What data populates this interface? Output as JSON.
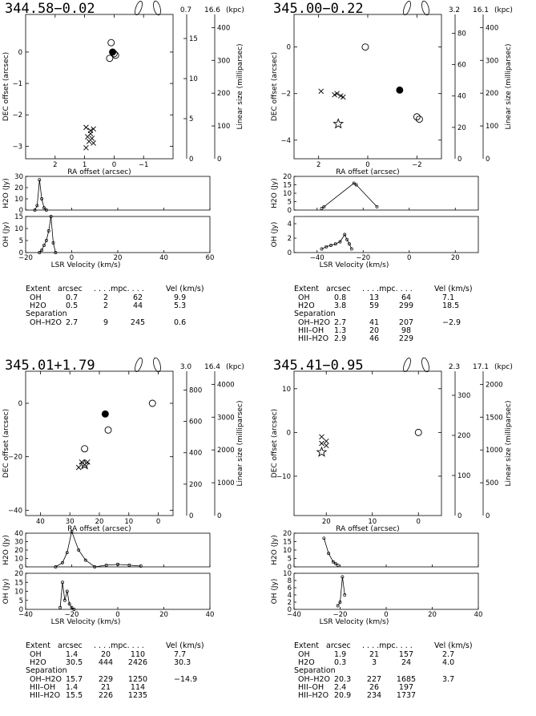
{
  "panels": [
    {
      "title": "344.58−0.02",
      "dist_near": "0.7",
      "dist_far": "16.6",
      "dist_unit": "(kpc)",
      "map_xlabel": "RA offset (arcsec)",
      "map_ylabel": "DEC offset (arcsec)",
      "lin_label": "Linear size (milliparsec)",
      "h2o_label": "H2O (Jy)",
      "oh_label": "OH (Jy)",
      "vel_label": "LSR Velocity (km/s)",
      "map_xticks": [
        "2",
        "1",
        "0",
        "−1"
      ],
      "map_yticks": [
        "0",
        "−1",
        "−2",
        "−3"
      ],
      "near_ticks": [
        "5",
        "10",
        "15"
      ],
      "far_ticks": [
        "100",
        "200",
        "300",
        "400"
      ],
      "h2o_yticks": [
        "0",
        "10",
        "20",
        "30"
      ],
      "oh_yticks": [
        "0",
        "5",
        "10",
        "15"
      ],
      "vel_ticks": [
        "−20",
        "0",
        "20",
        "40",
        "60"
      ],
      "table": {
        "header": [
          "Extent",
          "arcsec",
          ". . . .mpc. . . .",
          "Vel (km/s)"
        ],
        "rows": [
          [
            "OH",
            "0.7",
            "2",
            "62",
            "9.9"
          ],
          [
            "H2O",
            "0.5",
            "2",
            "44",
            "5.3"
          ]
        ],
        "sep_header": "Separation",
        "sep_rows": [
          [
            "OH–H2O",
            "2.7",
            "9",
            "245",
            "0.6"
          ]
        ]
      }
    },
    {
      "title": "345.00−0.22",
      "dist_near": "3.2",
      "dist_far": "16.1",
      "dist_unit": "(kpc)",
      "map_xlabel": "RA offset (arcsec)",
      "map_ylabel": "DEC offset (arcsec)",
      "lin_label": "Linear size (milliparsec)",
      "h2o_label": "H2O (Jy)",
      "oh_label": "OH (Jy)",
      "vel_label": "LSR Velocity (km/s)",
      "map_xticks": [
        "2",
        "0",
        "−2"
      ],
      "map_yticks": [
        "0",
        "−2",
        "−4"
      ],
      "near_ticks": [
        "20",
        "40",
        "60",
        "80"
      ],
      "far_ticks": [
        "100",
        "200",
        "300",
        "400"
      ],
      "h2o_yticks": [
        "0",
        "5",
        "10",
        "15",
        "20"
      ],
      "oh_yticks": [
        "0",
        "2",
        "4"
      ],
      "vel_ticks": [
        "−40",
        "−20",
        "0",
        "20"
      ],
      "table": {
        "header": [
          "Extent",
          "arcsec",
          ". . . .mpc. . . .",
          "Vel (km/s)"
        ],
        "rows": [
          [
            "OH",
            "0.8",
            "13",
            "64",
            "7.1"
          ],
          [
            "H2O",
            "3.8",
            "59",
            "299",
            "18.5"
          ]
        ],
        "sep_header": "Separation",
        "sep_rows": [
          [
            "OH–H2O",
            "2.7",
            "41",
            "207",
            "−2.9"
          ],
          [
            "HII–OH",
            "1.3",
            "20",
            "98",
            ""
          ],
          [
            "HII–H2O",
            "2.9",
            "46",
            "229",
            ""
          ]
        ]
      }
    },
    {
      "title": "345.01+1.79",
      "dist_near": "3.0",
      "dist_far": "16.4",
      "dist_unit": "(kpc)",
      "map_xlabel": "RA offset (arcsec)",
      "map_ylabel": "DEC offset (arcsec)",
      "lin_label": "Linear size (milliparsec)",
      "h2o_label": "H2O (Jy)",
      "oh_label": "OH (Jy)",
      "vel_label": "LSR Velocity (km/s)",
      "map_xticks": [
        "40",
        "30",
        "20",
        "10",
        "0"
      ],
      "map_yticks": [
        "0",
        "−20",
        "−40"
      ],
      "near_ticks": [
        "200",
        "400",
        "600",
        "800"
      ],
      "far_ticks": [
        "1000",
        "2000",
        "3000",
        "4000"
      ],
      "h2o_yticks": [
        "0",
        "10",
        "20",
        "30",
        "40"
      ],
      "oh_yticks": [
        "0",
        "5",
        "10",
        "15",
        "20"
      ],
      "vel_ticks": [
        "−40",
        "−20",
        "0",
        "20",
        "40"
      ],
      "table": {
        "header": [
          "Extent",
          "arcsec",
          ". . . .mpc. . . .",
          "Vel (km/s)"
        ],
        "rows": [
          [
            "OH",
            "1.4",
            "20",
            "110",
            "7.7"
          ],
          [
            "H2O",
            "30.5",
            "444",
            "2426",
            "30.3"
          ]
        ],
        "sep_header": "Separation",
        "sep_rows": [
          [
            "OH–H2O",
            "15.7",
            "229",
            "1250",
            "−14.9"
          ],
          [
            "HII–OH",
            "1.4",
            "21",
            "114",
            ""
          ],
          [
            "HII–H2O",
            "15.5",
            "226",
            "1235",
            ""
          ]
        ]
      }
    },
    {
      "title": "345.41−0.95",
      "dist_near": "2.3",
      "dist_far": "17.1",
      "dist_unit": "(kpc)",
      "map_xlabel": "RA offset (arcsec)",
      "map_ylabel": "DEC offset (arcsec)",
      "lin_label": "Linear size (milliparsec)",
      "h2o_label": "H2O (Jy)",
      "oh_label": "OH (Jy)",
      "vel_label": "LSR Velocity (km/s)",
      "map_xticks": [
        "20",
        "10",
        "0"
      ],
      "map_yticks": [
        "10",
        "0",
        "−10"
      ],
      "near_ticks": [
        "100",
        "200",
        "300"
      ],
      "far_ticks": [
        "500",
        "1000",
        "1500",
        "2000"
      ],
      "h2o_yticks": [
        "0",
        "5",
        "10",
        "15",
        "20"
      ],
      "oh_yticks": [
        "0",
        "2",
        "4",
        "6",
        "8",
        "10"
      ],
      "vel_ticks": [
        "−40",
        "−20",
        "0",
        "20",
        "40"
      ],
      "table": {
        "header": [
          "Extent",
          "arcsec",
          ". . . .mpc. . . .",
          "Vel (km/s)"
        ],
        "rows": [
          [
            "OH",
            "1.9",
            "21",
            "157",
            "2.7"
          ],
          [
            "H2O",
            "0.3",
            "3",
            "24",
            "4.0"
          ]
        ],
        "sep_header": "Separation",
        "sep_rows": [
          [
            "OH–H2O",
            "20.3",
            "227",
            "1685",
            "3.7"
          ],
          [
            "HII–OH",
            "2.4",
            "26",
            "197",
            ""
          ],
          [
            "HII–H2O",
            "20.9",
            "234",
            "1737",
            ""
          ]
        ]
      }
    }
  ],
  "chart_data": [
    {
      "type": "scatter",
      "title": "344.58−0.02",
      "xlabel": "RA offset (arcsec)",
      "ylabel": "DEC offset (arcsec)",
      "xlim": [
        3,
        -2
      ],
      "ylim": [
        -3.4,
        1.2
      ],
      "series": [
        {
          "name": "OH",
          "marker": "x",
          "x": [
            0.95,
            0.8,
            0.7,
            0.8,
            0.9,
            0.75,
            0.85,
            0.7,
            0.95
          ],
          "y": [
            -2.4,
            -2.5,
            -2.45,
            -2.6,
            -2.7,
            -2.75,
            -2.85,
            -2.9,
            -3.05
          ]
        },
        {
          "name": "H2O",
          "marker": "circle",
          "x": [
            0.1,
            0.05,
            0.15,
            0.0,
            -0.05
          ],
          "y": [
            0.3,
            0.0,
            -0.2,
            -0.05,
            -0.1
          ]
        }
      ],
      "spectra": {
        "h2o": {
          "x": [
            -16,
            -15,
            -14,
            -13,
            -12,
            -11
          ],
          "y": [
            0,
            4,
            27,
            10,
            2,
            0
          ],
          "ylim": [
            0,
            30
          ]
        },
        "oh": {
          "x": [
            -14,
            -13,
            -12,
            -11,
            -10,
            -9,
            -8,
            -7
          ],
          "y": [
            0,
            1,
            3,
            5,
            9,
            15,
            4,
            0
          ],
          "ylim": [
            0,
            15
          ]
        },
        "xlim": [
          -20,
          60
        ]
      }
    },
    {
      "type": "scatter",
      "title": "345.00−0.22",
      "xlabel": "RA offset (arcsec)",
      "ylabel": "DEC offset (arcsec)",
      "xlim": [
        3,
        -3
      ],
      "ylim": [
        -4.8,
        1.4
      ],
      "series": [
        {
          "name": "OH",
          "marker": "x",
          "x": [
            1.9,
            1.35,
            1.25,
            1.1,
            1.0
          ],
          "y": [
            -1.9,
            -2.05,
            -2.0,
            -2.1,
            -2.15
          ]
        },
        {
          "name": "H2O",
          "marker": "circle",
          "x": [
            0.1,
            -1.3,
            -2.0,
            -2.1
          ],
          "y": [
            0.0,
            -1.85,
            -3.0,
            -3.1
          ]
        },
        {
          "name": "HII",
          "marker": "star",
          "x": [
            1.2
          ],
          "y": [
            -3.3
          ]
        }
      ],
      "spectra": {
        "h2o": {
          "x": [
            -38,
            -37,
            -24,
            -23,
            -14
          ],
          "y": [
            1,
            2,
            16,
            15,
            2
          ],
          "ylim": [
            0,
            20
          ]
        },
        "oh": {
          "x": [
            -38,
            -36,
            -34,
            -32,
            -30,
            -28,
            -27,
            -26,
            -25
          ],
          "y": [
            0.5,
            0.8,
            1,
            1.2,
            1.5,
            2.5,
            1.8,
            1.2,
            0.5
          ],
          "ylim": [
            0,
            5
          ]
        },
        "xlim": [
          -50,
          30
        ]
      }
    },
    {
      "type": "scatter",
      "title": "345.01+1.79",
      "xlabel": "RA offset (arcsec)",
      "ylabel": "DEC offset (arcsec)",
      "xlim": [
        45,
        -5
      ],
      "ylim": [
        -42,
        12
      ],
      "series": [
        {
          "name": "OH",
          "marker": "x",
          "x": [
            26,
            25,
            27,
            24
          ],
          "y": [
            -22,
            -23,
            -24,
            -22
          ]
        },
        {
          "name": "H2O",
          "marker": "circle",
          "x": [
            2,
            18,
            17,
            25
          ],
          "y": [
            0,
            -4,
            -10,
            -17
          ]
        },
        {
          "name": "HII",
          "marker": "star",
          "x": [
            25
          ],
          "y": [
            -23
          ]
        }
      ],
      "spectra": {
        "h2o": {
          "x": [
            -27,
            -24,
            -22,
            -20,
            -17,
            -14,
            -10,
            -5,
            0,
            5,
            10
          ],
          "y": [
            0,
            5,
            17,
            42,
            20,
            8,
            0,
            2,
            3,
            2,
            1
          ],
          "ylim": [
            0,
            40
          ]
        },
        "oh": {
          "x": [
            -25,
            -24,
            -23,
            -22,
            -21,
            -20,
            -19
          ],
          "y": [
            1,
            15,
            5,
            10,
            3,
            1,
            0
          ],
          "ylim": [
            0,
            20
          ]
        },
        "xlim": [
          -40,
          40
        ]
      }
    },
    {
      "type": "scatter",
      "title": "345.41−0.95",
      "xlabel": "RA offset (arcsec)",
      "ylabel": "DEC offset (arcsec)",
      "xlim": [
        27,
        -5
      ],
      "ylim": [
        -19,
        14
      ],
      "series": [
        {
          "name": "OH",
          "marker": "x",
          "x": [
            21,
            20,
            21,
            20
          ],
          "y": [
            -1,
            -2,
            -2.5,
            -3
          ]
        },
        {
          "name": "H2O",
          "marker": "circle",
          "x": [
            0
          ],
          "y": [
            0
          ]
        },
        {
          "name": "HII",
          "marker": "star",
          "x": [
            21
          ],
          "y": [
            -4.5
          ]
        }
      ],
      "spectra": {
        "h2o": {
          "x": [
            -27,
            -25,
            -23,
            -22,
            -21
          ],
          "y": [
            17,
            8,
            3,
            2,
            1
          ],
          "ylim": [
            0,
            20
          ]
        },
        "oh": {
          "x": [
            -21,
            -20,
            -19,
            -18
          ],
          "y": [
            1,
            2,
            9,
            4
          ],
          "ylim": [
            0,
            10
          ]
        },
        "xlim": [
          -40,
          40
        ]
      }
    }
  ]
}
